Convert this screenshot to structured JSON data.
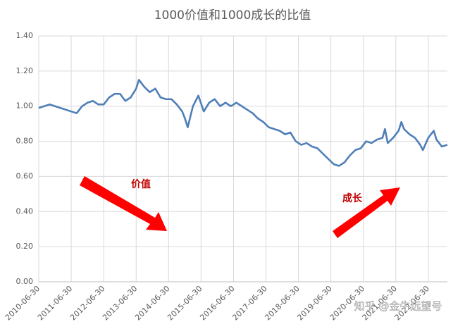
{
  "chart_data": {
    "type": "line",
    "title": "1000价值和1000成长的比值",
    "x": [
      "2010-06-30",
      "2010-08-31",
      "2010-10-31",
      "2010-12-31",
      "2011-02-28",
      "2011-04-30",
      "2011-06-30",
      "2011-08-31",
      "2011-10-31",
      "2011-12-31",
      "2012-02-29",
      "2012-04-30",
      "2012-06-30",
      "2012-08-31",
      "2012-10-31",
      "2012-12-31",
      "2013-02-28",
      "2013-04-30",
      "2013-06-30",
      "2013-07-31",
      "2013-09-30",
      "2013-11-30",
      "2014-01-31",
      "2014-03-31",
      "2014-05-31",
      "2014-07-31",
      "2014-09-30",
      "2014-11-30",
      "2014-12-31",
      "2015-01-31",
      "2015-03-31",
      "2015-05-31",
      "2015-07-31",
      "2015-09-30",
      "2015-11-30",
      "2016-01-31",
      "2016-03-31",
      "2016-05-31",
      "2016-07-31",
      "2016-09-30",
      "2016-11-30",
      "2017-01-31",
      "2017-03-31",
      "2017-05-31",
      "2017-07-31",
      "2017-09-30",
      "2017-11-30",
      "2018-01-31",
      "2018-03-31",
      "2018-05-31",
      "2018-07-31",
      "2018-09-30",
      "2018-11-30",
      "2019-01-31",
      "2019-03-31",
      "2019-05-31",
      "2019-07-31",
      "2019-09-30",
      "2019-11-30",
      "2020-01-31",
      "2020-03-31",
      "2020-05-31",
      "2020-07-31",
      "2020-09-30",
      "2020-11-30",
      "2021-01-31",
      "2021-02-28",
      "2021-03-31",
      "2021-05-31",
      "2021-07-31",
      "2021-08-31",
      "2021-09-30",
      "2021-11-30",
      "2022-01-31",
      "2022-03-31",
      "2022-04-30",
      "2022-06-30",
      "2022-08-31",
      "2022-09-30",
      "2022-11-30",
      "2023-01-31"
    ],
    "values": [
      0.99,
      1.0,
      1.01,
      1.0,
      0.99,
      0.98,
      0.97,
      0.96,
      1.0,
      1.02,
      1.03,
      1.01,
      1.01,
      1.05,
      1.07,
      1.07,
      1.03,
      1.05,
      1.1,
      1.15,
      1.11,
      1.08,
      1.1,
      1.05,
      1.04,
      1.04,
      1.01,
      0.97,
      0.93,
      0.88,
      1.0,
      1.06,
      0.97,
      1.02,
      1.04,
      1.0,
      1.02,
      1.0,
      1.02,
      1.0,
      0.98,
      0.96,
      0.93,
      0.91,
      0.88,
      0.87,
      0.86,
      0.84,
      0.85,
      0.8,
      0.78,
      0.79,
      0.77,
      0.76,
      0.73,
      0.7,
      0.67,
      0.66,
      0.68,
      0.72,
      0.75,
      0.76,
      0.8,
      0.79,
      0.81,
      0.82,
      0.87,
      0.79,
      0.82,
      0.86,
      0.91,
      0.87,
      0.84,
      0.82,
      0.78,
      0.75,
      0.82,
      0.86,
      0.81,
      0.77,
      0.78
    ],
    "color": "#4f7fb8",
    "xlim": [
      "2010-06-30",
      "2023-01-31"
    ],
    "xticks": [
      "2010-06-30",
      "2011-06-30",
      "2012-06-30",
      "2013-06-30",
      "2014-06-30",
      "2015-06-30",
      "2016-06-30",
      "2017-06-30",
      "2018-06-30",
      "2019-06-30",
      "2020-06-30",
      "2021-06-30",
      "2022-06-30"
    ],
    "ylim": [
      0,
      1.4
    ],
    "yticks": [
      {
        "value": 0,
        "label": "0.00"
      },
      {
        "value": 0.2,
        "label": "0.20"
      },
      {
        "value": 0.4,
        "label": "0.40"
      },
      {
        "value": 0.6,
        "label": "0.60"
      },
      {
        "value": 0.8,
        "label": "0.80"
      },
      {
        "value": 1.0,
        "label": "1.00"
      },
      {
        "value": 1.2,
        "label": "1.20"
      },
      {
        "value": 1.4,
        "label": "1.40"
      }
    ],
    "grid": true,
    "annotations": [
      "价值",
      "成长"
    ],
    "watermark": "知乎 @金牛远望号"
  }
}
